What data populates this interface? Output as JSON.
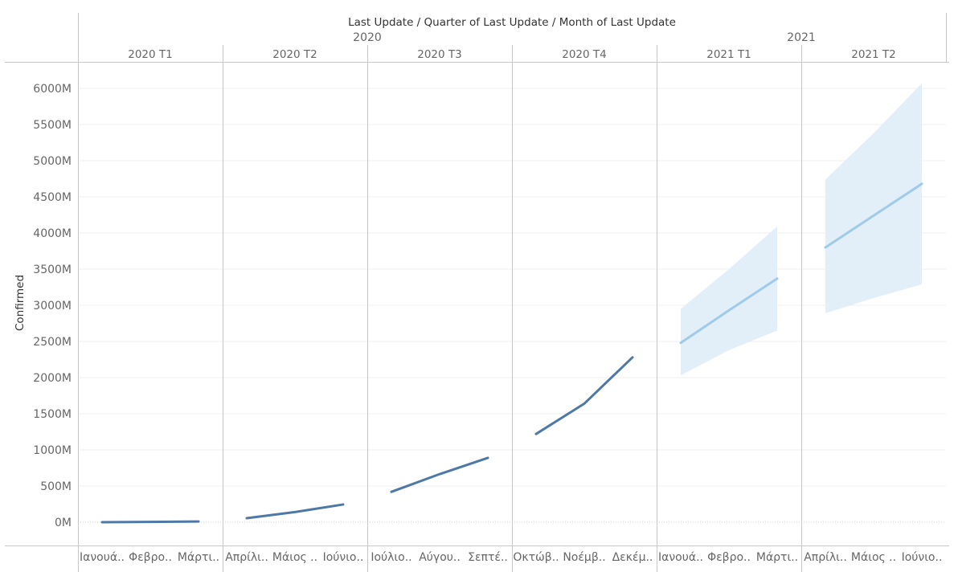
{
  "chart_data": {
    "type": "line",
    "header_title": "Last Update  /  Quarter of Last Update  /  Month of Last Update",
    "ylabel": "Confirmed",
    "ylim": [
      -200,
      6600
    ],
    "yticks": [
      "0M",
      "500M",
      "1000M",
      "1500M",
      "2000M",
      "2500M",
      "3000M",
      "3500M",
      "4000M",
      "4500M",
      "5000M",
      "5500M",
      "6000M"
    ],
    "ytick_values": [
      0,
      500,
      1000,
      1500,
      2000,
      2500,
      3000,
      3500,
      4000,
      4500,
      5000,
      5500,
      6000
    ],
    "years": [
      {
        "label": "2020",
        "quarters": 4
      },
      {
        "label": "2021",
        "quarters": 2
      }
    ],
    "quarters": [
      {
        "label": "2020 T1",
        "months": [
          "Ιανουά..",
          "Φεβρο..",
          "Μάρτι.."
        ],
        "values": [
          0,
          4,
          10
        ],
        "forecast": false
      },
      {
        "label": "2020 T2",
        "months": [
          "Απρίλι..",
          "Μάιος ..",
          "Ιούνιο.."
        ],
        "values": [
          55,
          140,
          245
        ],
        "forecast": false
      },
      {
        "label": "2020 T3",
        "months": [
          "Ιούλιο..",
          "Αύγου..",
          "Σεπτέ.."
        ],
        "values": [
          420,
          665,
          890
        ],
        "forecast": false
      },
      {
        "label": "2020 T4",
        "months": [
          "Οκτώβ..",
          "Νοέμβ..",
          "Δεκέμ.."
        ],
        "values": [
          1220,
          1640,
          2280
        ],
        "forecast": false
      },
      {
        "label": "2021 T1",
        "months": [
          "Ιανουά..",
          "Φεβρο..",
          "Μάρτι.."
        ],
        "values": [
          2480,
          2930,
          3370
        ],
        "forecast": true,
        "band_upper": [
          2950,
          3500,
          4090
        ],
        "band_lower": [
          2030,
          2380,
          2650
        ]
      },
      {
        "label": "2021 T2",
        "months": [
          "Απρίλι..",
          "Μάιος ..",
          "Ιούνιο.."
        ],
        "values": [
          3800,
          4240,
          4680
        ],
        "forecast": true,
        "band_upper": [
          4740,
          5380,
          6070
        ],
        "band_lower": [
          2890,
          3100,
          3290
        ]
      }
    ],
    "grid": true,
    "legend": "none"
  },
  "colors": {
    "actual_line": "#4e79a7",
    "forecast_line": "#a0cbe8",
    "forecast_band": "#e2eef8",
    "gridline": "#efefef",
    "divider": "#c8c8c8",
    "zero_line": "#cfcfcf"
  }
}
